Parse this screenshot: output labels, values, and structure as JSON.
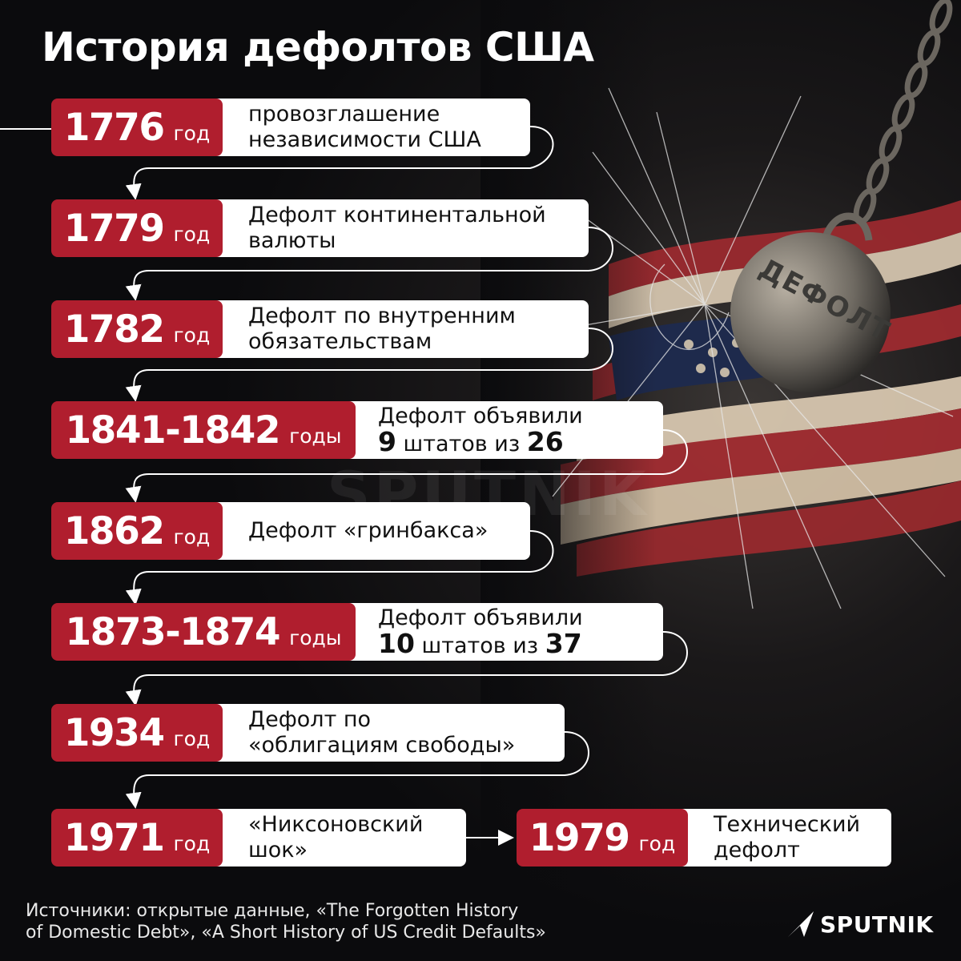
{
  "title": "История дефолтов США",
  "watermark": "SPUTNIK",
  "ball_label": "ДЕФОЛТ",
  "colors": {
    "accent_red": "#b01e2e",
    "card_white": "#ffffff",
    "background": "#0b0b0d"
  },
  "timeline": [
    {
      "year": "1776",
      "unit": "год",
      "text": "провозглашение\nнезависимости США"
    },
    {
      "year": "1779",
      "unit": "год",
      "text": "Дефолт континентальной\nвалюты"
    },
    {
      "year": "1782",
      "unit": "год",
      "text": "Дефолт по внутренним\nобязательствам"
    },
    {
      "year": "1841-1842",
      "unit": "годы",
      "line1": "Дефолт объявили",
      "n1": "9",
      "mid": " штатов из ",
      "n2": "26"
    },
    {
      "year": "1862",
      "unit": "год",
      "text": "Дефолт «гринбакса»"
    },
    {
      "year": "1873-1874",
      "unit": "годы",
      "line1": "Дефолт объявили",
      "n1": "10",
      "mid": " штатов из ",
      "n2": "37"
    },
    {
      "year": "1934",
      "unit": "год",
      "text": "Дефолт по\n«облигациям свободы»"
    },
    {
      "year": "1971",
      "unit": "год",
      "text": "«Никсоновский\nшок»"
    },
    {
      "year": "1979",
      "unit": "год",
      "text": "Технический\nдефолт"
    }
  ],
  "sources": {
    "line1": "Источники: открытые данные, «The Forgotten History",
    "line2": "of Domestic Debt», «A Short History of US Credit Defaults»"
  },
  "logo": {
    "text": "SPUTNIK",
    "icon": "sputnik-arrow-icon"
  }
}
